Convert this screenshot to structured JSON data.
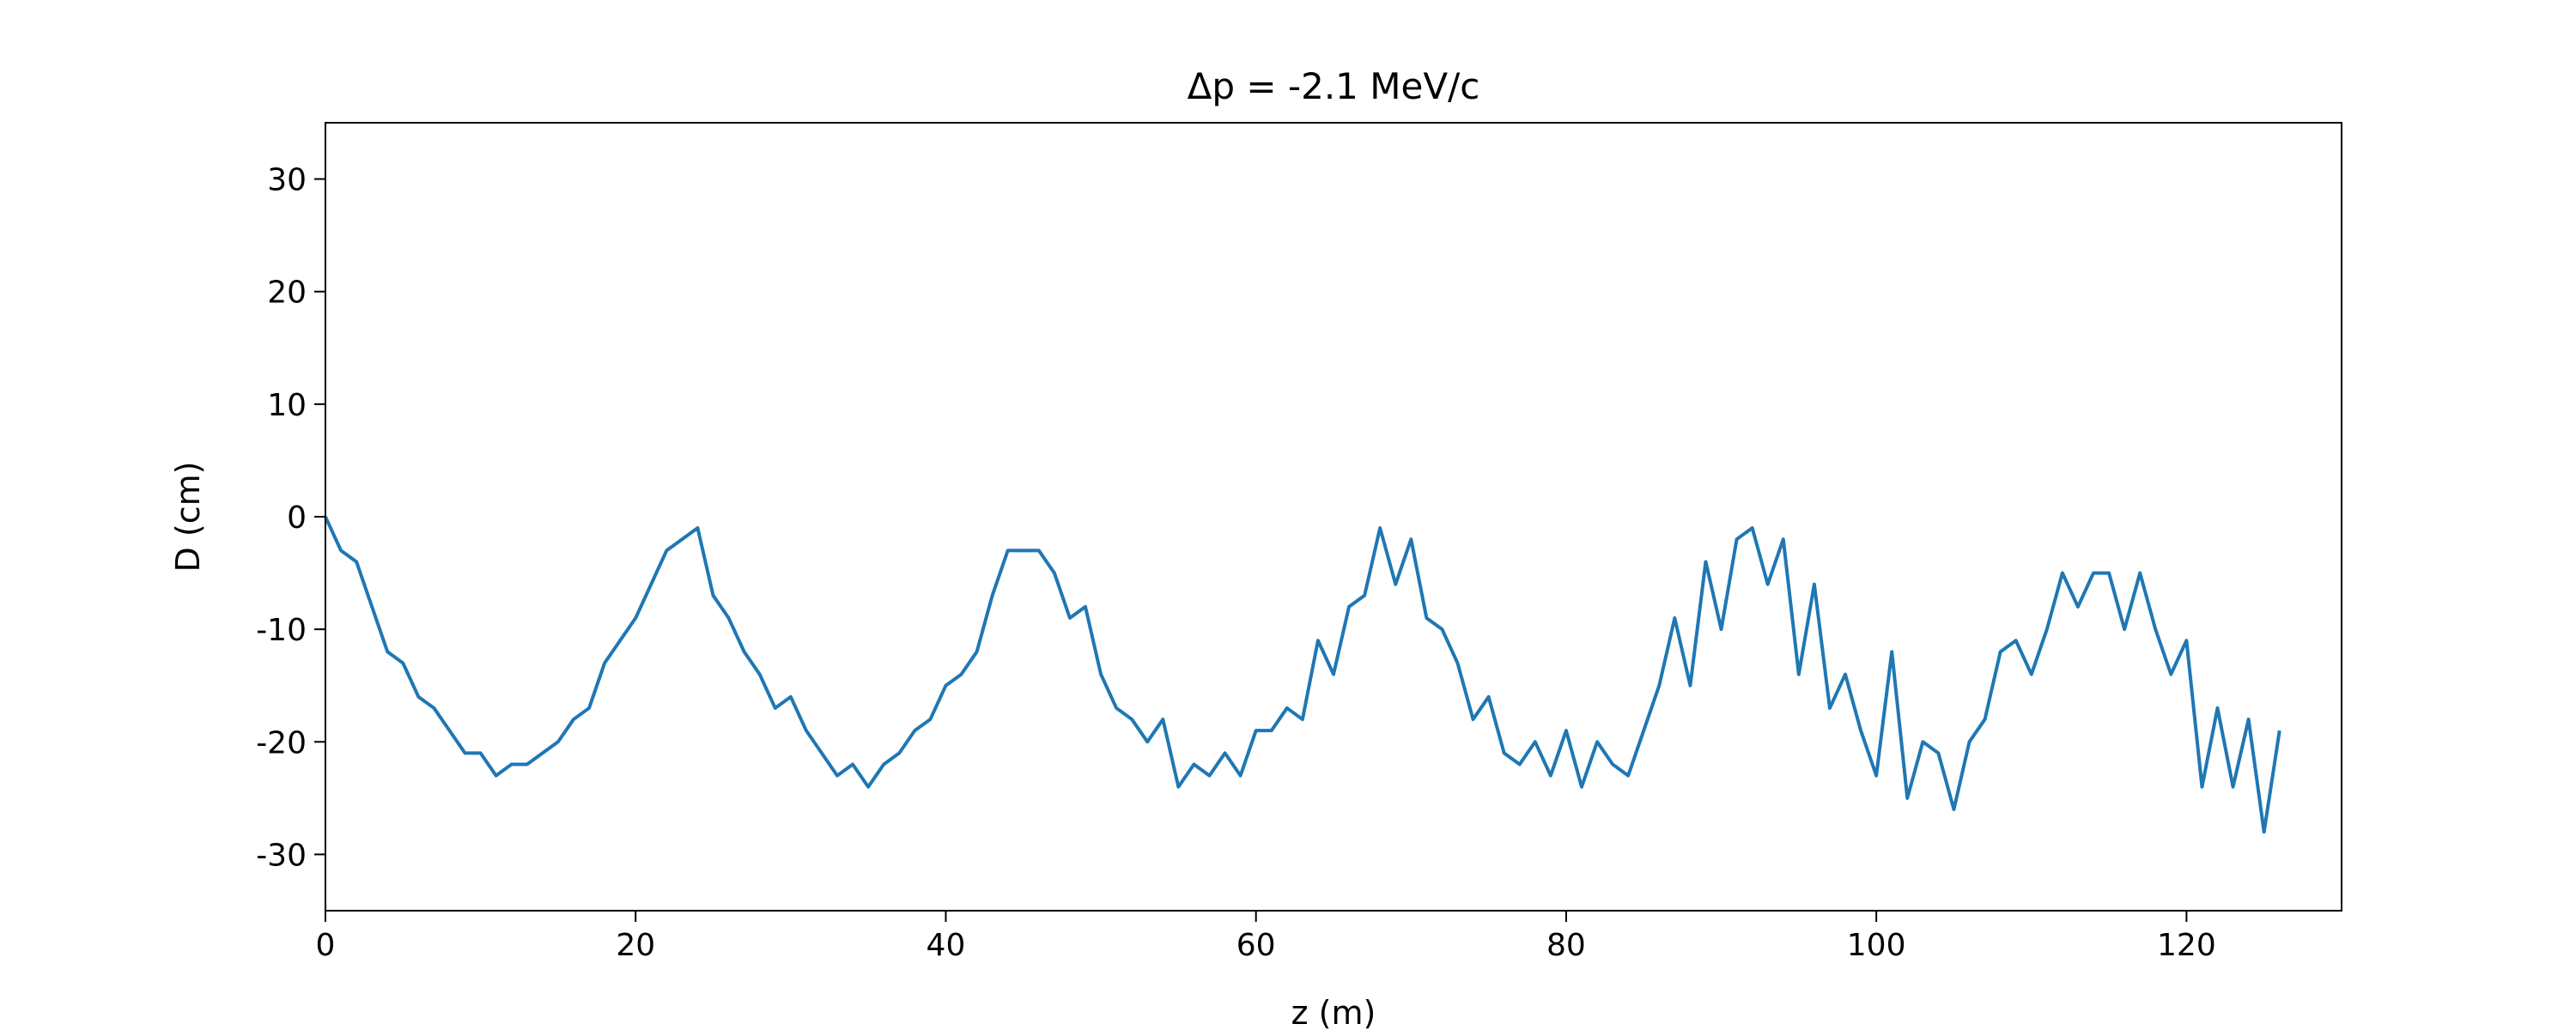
{
  "chart_data": {
    "type": "line",
    "title": "Δp = -2.1 MeV/c",
    "x_label": "z (m)",
    "y_label": "D (cm)",
    "x": [
      0,
      1,
      2,
      3,
      4,
      5,
      6,
      7,
      8,
      9,
      10,
      11,
      12,
      13,
      14,
      15,
      16,
      17,
      18,
      19,
      20,
      21,
      22,
      23,
      24,
      25,
      26,
      27,
      28,
      29,
      30,
      31,
      32,
      33,
      34,
      35,
      36,
      37,
      38,
      39,
      40,
      41,
      42,
      43,
      44,
      45,
      46,
      47,
      48,
      49,
      50,
      51,
      52,
      53,
      54,
      55,
      56,
      57,
      58,
      59,
      60,
      61,
      62,
      63,
      64,
      65,
      66,
      67,
      68,
      69,
      70,
      71,
      72,
      73,
      74,
      75,
      76,
      77,
      78,
      79,
      80,
      81,
      82,
      83,
      84,
      85,
      86,
      87,
      88,
      89,
      90,
      91,
      92,
      93,
      94,
      95,
      96,
      97,
      98,
      99,
      100,
      101,
      102,
      103,
      104,
      105,
      106,
      107,
      108,
      109,
      110,
      111,
      112,
      113,
      114,
      115,
      116,
      117,
      118,
      119,
      120,
      121,
      122,
      123,
      124,
      125,
      126
    ],
    "values": [
      0,
      -3,
      -4,
      -8,
      -12,
      -13,
      -16,
      -17,
      -19,
      -21,
      -21,
      -23,
      -22,
      -22,
      -21,
      -20,
      -18,
      -17,
      -13,
      -11,
      -9,
      -6,
      -3,
      -2,
      -1,
      -7,
      -9,
      -12,
      -14,
      -17,
      -16,
      -19,
      -21,
      -23,
      -22,
      -24,
      -22,
      -21,
      -19,
      -18,
      -15,
      -14,
      -12,
      -7,
      -3,
      -3,
      -3,
      -5,
      -9,
      -8,
      -14,
      -17,
      -18,
      -20,
      -18,
      -24,
      -22,
      -23,
      -21,
      -23,
      -19,
      -19,
      -17,
      -18,
      -11,
      -14,
      -8,
      -7,
      -1,
      -6,
      -2,
      -9,
      -10,
      -13,
      -18,
      -16,
      -21,
      -22,
      -20,
      -23,
      -19,
      -24,
      -20,
      -22,
      -23,
      -19,
      -15,
      -9,
      -15,
      -4,
      -10,
      -2,
      -1,
      -6,
      -2,
      -14,
      -6,
      -17,
      -14,
      -19,
      -23,
      -12,
      -25,
      -20,
      -21,
      -26,
      -20,
      -18,
      -12,
      -11,
      -14,
      -10,
      -5,
      -8,
      -5,
      -5,
      -10,
      -5,
      -10,
      -14,
      -11,
      -24,
      -17,
      -24,
      -18,
      -28,
      -19
    ],
    "color": "#1f77b4",
    "xlim": [
      0,
      130
    ],
    "xticks": [
      0,
      20,
      40,
      60,
      80,
      100,
      120
    ],
    "ylim": [
      -35,
      35
    ],
    "yticks": [
      -30,
      -20,
      -10,
      0,
      10,
      20,
      30
    ]
  }
}
